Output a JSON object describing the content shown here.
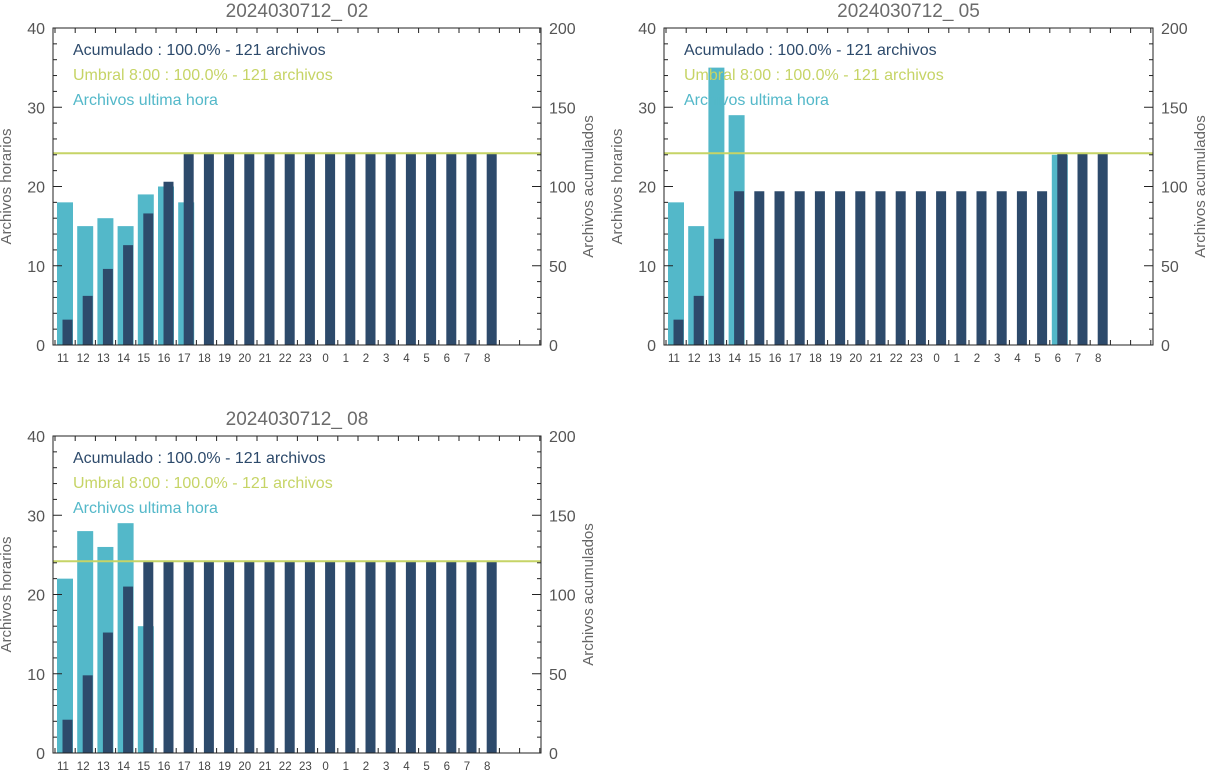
{
  "colors": {
    "acumulado": "#2d4a6b",
    "umbral": "#c6d466",
    "ultima_hora": "#53b8c9",
    "axis": "#222222"
  },
  "chart_data": [
    {
      "type": "bar",
      "title": "2024030712_ 02",
      "ylabel_left": "Archivos horarios",
      "ylabel_right": "Archivos acumulados",
      "ylim_left": [
        0,
        40
      ],
      "ylim_right": [
        0,
        200
      ],
      "yticks_left": [
        "0",
        "10",
        "20",
        "30",
        "40"
      ],
      "yticks_right": [
        "0",
        "50",
        "100",
        "150",
        "200"
      ],
      "categories": [
        "11",
        "12",
        "13",
        "14",
        "15",
        "16",
        "17",
        "18",
        "19",
        "20",
        "21",
        "22",
        "23",
        "0",
        "1",
        "2",
        "3",
        "4",
        "5",
        "6",
        "7",
        "8"
      ],
      "legend": [
        "Acumulado : 100.0% - 121 archivos",
        "Umbral 8:00 : 100.0% - 121 archivos",
        "Archivos ultima hora"
      ],
      "threshold": 121,
      "series": [
        {
          "name": "Archivos ultima hora",
          "axis": "left",
          "values": [
            18,
            15,
            16,
            15,
            19,
            20,
            18,
            0,
            0,
            0,
            0,
            0,
            0,
            0,
            0,
            0,
            0,
            0,
            0,
            0,
            0,
            0
          ]
        },
        {
          "name": "Acumulado",
          "axis": "right",
          "values": [
            16,
            31,
            48,
            63,
            83,
            103,
            121,
            121,
            121,
            121,
            121,
            121,
            121,
            121,
            121,
            121,
            121,
            121,
            121,
            121,
            121,
            121
          ]
        }
      ]
    },
    {
      "type": "bar",
      "title": "2024030712_ 05",
      "ylabel_left": "Archivos horarios",
      "ylabel_right": "Archivos acumulados",
      "ylim_left": [
        0,
        40
      ],
      "ylim_right": [
        0,
        200
      ],
      "yticks_left": [
        "0",
        "10",
        "20",
        "30",
        "40"
      ],
      "yticks_right": [
        "0",
        "50",
        "100",
        "150",
        "200"
      ],
      "categories": [
        "11",
        "12",
        "13",
        "14",
        "15",
        "16",
        "17",
        "18",
        "19",
        "20",
        "21",
        "22",
        "23",
        "0",
        "1",
        "2",
        "3",
        "4",
        "5",
        "6",
        "7",
        "8"
      ],
      "legend": [
        "Acumulado : 100.0% - 121 archivos",
        "Umbral 8:00 : 100.0% - 121 archivos",
        "Archivos ultima hora"
      ],
      "threshold": 121,
      "series": [
        {
          "name": "Archivos ultima hora",
          "axis": "left",
          "values": [
            18,
            15,
            35,
            29,
            0,
            0,
            0,
            0,
            0,
            0,
            0,
            0,
            0,
            0,
            0,
            0,
            0,
            0,
            0,
            24,
            0,
            0
          ]
        },
        {
          "name": "Acumulado",
          "axis": "right",
          "values": [
            16,
            31,
            67,
            97,
            97,
            97,
            97,
            97,
            97,
            97,
            97,
            97,
            97,
            97,
            97,
            97,
            97,
            97,
            97,
            121,
            121,
            121
          ]
        }
      ]
    },
    {
      "type": "bar",
      "title": "2024030712_ 08",
      "ylabel_left": "Archivos horarios",
      "ylabel_right": "Archivos acumulados",
      "ylim_left": [
        0,
        40
      ],
      "ylim_right": [
        0,
        200
      ],
      "yticks_left": [
        "0",
        "10",
        "20",
        "30",
        "40"
      ],
      "yticks_right": [
        "0",
        "50",
        "100",
        "150",
        "200"
      ],
      "categories": [
        "11",
        "12",
        "13",
        "14",
        "15",
        "16",
        "17",
        "18",
        "19",
        "20",
        "21",
        "22",
        "23",
        "0",
        "1",
        "2",
        "3",
        "4",
        "5",
        "6",
        "7",
        "8"
      ],
      "legend": [
        "Acumulado : 100.0% - 121 archivos",
        "Umbral 8:00 : 100.0% - 121 archivos",
        "Archivos ultima hora"
      ],
      "threshold": 121,
      "series": [
        {
          "name": "Archivos ultima hora",
          "axis": "left",
          "values": [
            22,
            28,
            26,
            29,
            16,
            0,
            0,
            0,
            0,
            0,
            0,
            0,
            0,
            0,
            0,
            0,
            0,
            0,
            0,
            0,
            0,
            0
          ]
        },
        {
          "name": "Acumulado",
          "axis": "right",
          "values": [
            21,
            49,
            76,
            105,
            121,
            121,
            121,
            121,
            121,
            121,
            121,
            121,
            121,
            121,
            121,
            121,
            121,
            121,
            121,
            121,
            121,
            121
          ]
        }
      ]
    }
  ]
}
